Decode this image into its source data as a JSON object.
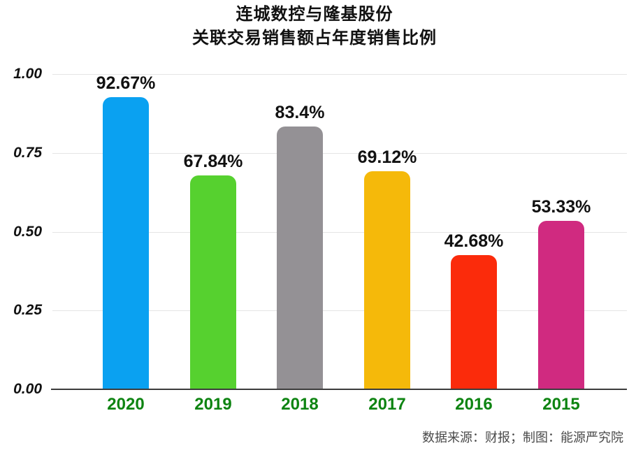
{
  "title": {
    "line1": "连城数控与隆基股份",
    "line2": "关联交易销售额占年度销售比例"
  },
  "footer": {
    "source": "数据来源：财报；制图：能源严究院"
  },
  "colors": {
    "year_label_green": "#0e8412",
    "gridline": "#e5e5e5",
    "axis_line": "#3c3c3c",
    "value_label_black": "#111111",
    "footer_gray": "#4a4a4a"
  },
  "chart_data": {
    "type": "bar",
    "title": "连城数控与隆基股份",
    "subtitle": "关联交易销售额占年度销售比例",
    "categories": [
      "2020",
      "2019",
      "2018",
      "2017",
      "2016",
      "2015"
    ],
    "values": [
      0.9267,
      0.6784,
      0.834,
      0.6912,
      0.4268,
      0.5333
    ],
    "value_labels": [
      "92.67%",
      "67.84%",
      "83.4%",
      "69.12%",
      "42.68%",
      "53.33%"
    ],
    "bar_colors": [
      "#0aa1f1",
      "#56d12f",
      "#949195",
      "#f5b90a",
      "#fb2b0b",
      "#d02a80"
    ],
    "yticks": [
      "0.00",
      "0.25",
      "0.50",
      "0.75",
      "1.00"
    ],
    "ytick_values": [
      0,
      0.25,
      0.5,
      0.75,
      1.0
    ],
    "ylim": [
      0,
      1.0
    ],
    "xlabel": "",
    "ylabel": "",
    "grid": true,
    "legend": false
  }
}
